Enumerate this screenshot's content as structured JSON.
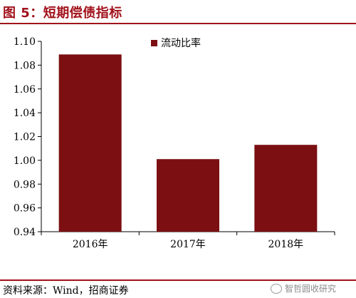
{
  "header": {
    "title": "图 5：短期偿债指标"
  },
  "footer": {
    "source": "资料来源：Wind，招商证券",
    "watermark": "智哲圆收研究"
  },
  "colors": {
    "accent": "#a1111b",
    "bar": "#7b0f12"
  },
  "chart_data": {
    "type": "bar",
    "categories": [
      "2016年",
      "2017年",
      "2018年"
    ],
    "series": [
      {
        "name": "流动比率",
        "values": [
          1.089,
          1.001,
          1.013
        ]
      }
    ],
    "ylim": [
      0.94,
      1.1
    ],
    "yticks": [
      "0.94",
      "0.96",
      "0.98",
      "1.00",
      "1.02",
      "1.04",
      "1.06",
      "1.08",
      "1.10"
    ],
    "legend": "top-center",
    "grid": false
  }
}
